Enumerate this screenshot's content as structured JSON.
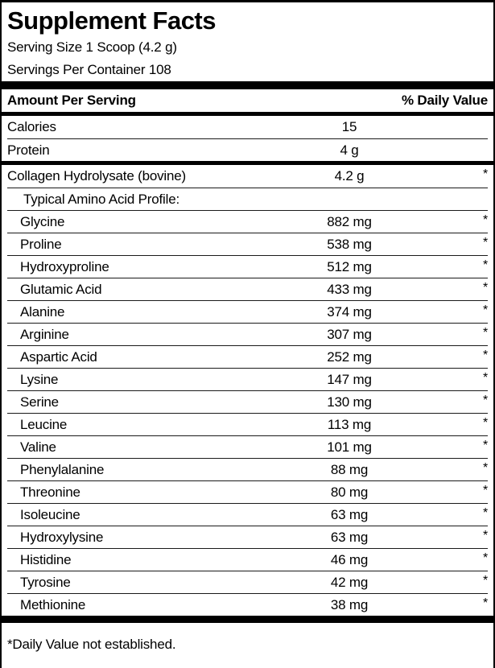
{
  "label": {
    "title": "Supplement Facts",
    "serving_size": "Serving Size 1 Scoop (4.2 g)",
    "servings_per_container": "Servings Per Container 108",
    "header": {
      "amount_label": "Amount Per Serving",
      "daily_value_label": "% Daily Value"
    },
    "top_rows": [
      {
        "name": "Calories",
        "amount": "15",
        "dv": "",
        "level": 0
      },
      {
        "name": "Protein",
        "amount": "4 g",
        "dv": "",
        "level": 0
      }
    ],
    "main_rows": [
      {
        "name": "Collagen Hydrolysate (bovine)",
        "amount": "4.2 g",
        "dv": "*",
        "level": 0
      },
      {
        "name": "Typical Amino Acid Profile:",
        "amount": "",
        "dv": "",
        "level": 1
      },
      {
        "name": "Glycine",
        "amount": "882 mg",
        "dv": "*",
        "level": 2
      },
      {
        "name": "Proline",
        "amount": "538 mg",
        "dv": "*",
        "level": 2
      },
      {
        "name": "Hydroxyproline",
        "amount": "512 mg",
        "dv": "*",
        "level": 2
      },
      {
        "name": "Glutamic Acid",
        "amount": "433 mg",
        "dv": "*",
        "level": 2
      },
      {
        "name": "Alanine",
        "amount": "374 mg",
        "dv": "*",
        "level": 2
      },
      {
        "name": "Arginine",
        "amount": "307 mg",
        "dv": "*",
        "level": 2
      },
      {
        "name": "Aspartic Acid",
        "amount": "252 mg",
        "dv": "*",
        "level": 2
      },
      {
        "name": "Lysine",
        "amount": "147 mg",
        "dv": "*",
        "level": 2
      },
      {
        "name": "Serine",
        "amount": "130 mg",
        "dv": "*",
        "level": 2
      },
      {
        "name": "Leucine",
        "amount": "113 mg",
        "dv": "*",
        "level": 2
      },
      {
        "name": "Valine",
        "amount": "101 mg",
        "dv": "*",
        "level": 2
      },
      {
        "name": "Phenylalanine",
        "amount": "88 mg",
        "dv": "*",
        "level": 2
      },
      {
        "name": "Threonine",
        "amount": "80 mg",
        "dv": "*",
        "level": 2
      },
      {
        "name": "Isoleucine",
        "amount": "63 mg",
        "dv": "*",
        "level": 2
      },
      {
        "name": "Hydroxylysine",
        "amount": "63 mg",
        "dv": "*",
        "level": 2
      },
      {
        "name": "Histidine",
        "amount": "46 mg",
        "dv": "*",
        "level": 2
      },
      {
        "name": "Tyrosine",
        "amount": "42 mg",
        "dv": "*",
        "level": 2
      },
      {
        "name": "Methionine",
        "amount": "38 mg",
        "dv": "*",
        "level": 2
      }
    ],
    "footnote": "*Daily Value not established."
  },
  "colors": {
    "text": "#000000",
    "rule": "#1a1a1a",
    "background": "#ffffff"
  }
}
